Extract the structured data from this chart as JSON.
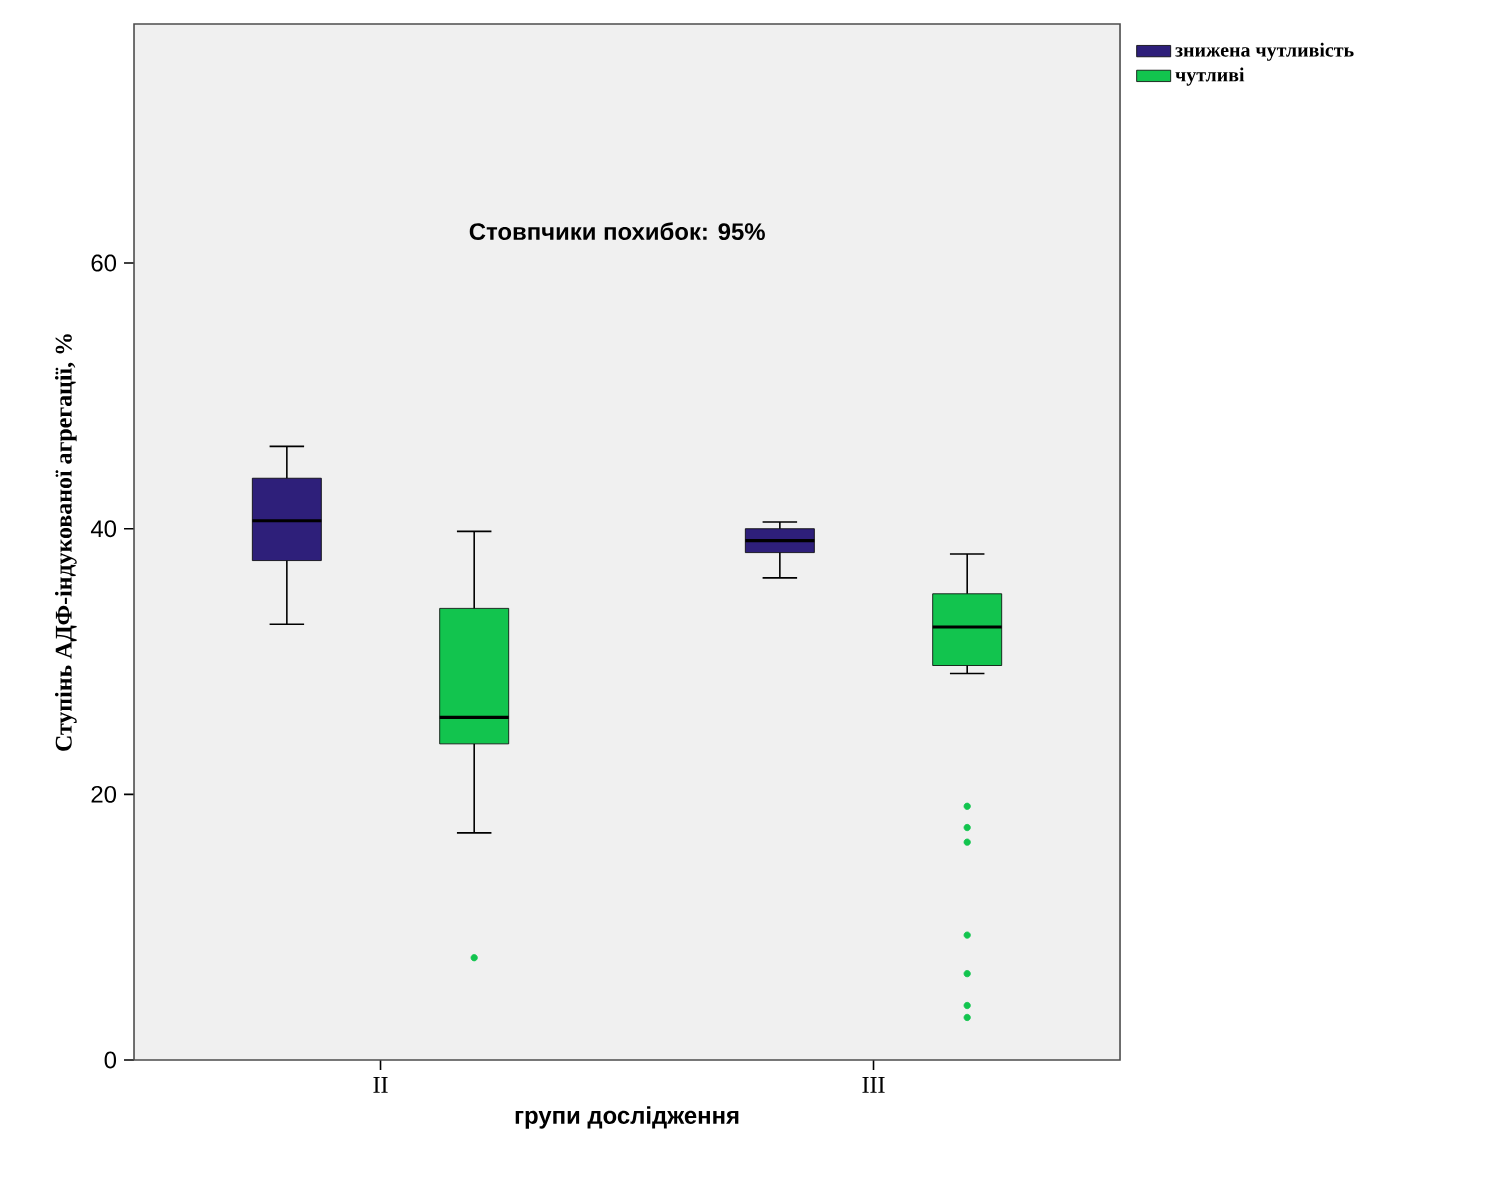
{
  "chart_data": {
    "type": "box",
    "xlabel": "групи дослідження",
    "ylabel": "Ступінь АДФ-індукованої агрегації, %",
    "annotations": [
      "Стовпчики похибок: 95%"
    ],
    "categories": [
      "II",
      "III"
    ],
    "ylim": [
      0,
      78
    ],
    "yticks": [
      0,
      20,
      40,
      60
    ],
    "grid": false,
    "legend": "top right",
    "series": [
      {
        "name": "знижена чутливість",
        "color": "#2e1f7a",
        "boxes": [
          {
            "low": 32.8,
            "q1": 37.6,
            "median": 40.6,
            "q3": 43.8,
            "high": 46.2
          },
          {
            "low": 36.3,
            "q1": 38.2,
            "median": 39.1,
            "q3": 40.0,
            "high": 40.5
          }
        ]
      },
      {
        "name": "чутливі",
        "color": "#12c44e",
        "boxes": [
          {
            "low": 17.1,
            "q1": 23.8,
            "median": 25.8,
            "q3": 34.0,
            "high": 39.8,
            "outliers": [
              7.7
            ]
          },
          {
            "low": 29.1,
            "q1": 29.7,
            "median": 32.6,
            "q3": 35.1,
            "high": 38.1,
            "outliers": [
              19.1,
              17.5,
              16.4,
              9.4,
              6.5,
              4.1,
              3.2
            ]
          }
        ]
      }
    ]
  }
}
